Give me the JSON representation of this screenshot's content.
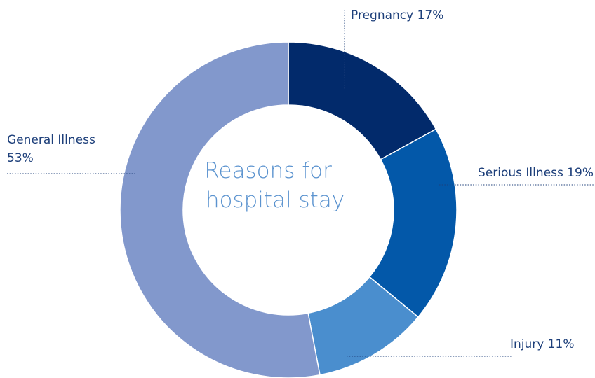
{
  "chart_data": {
    "type": "pie",
    "variant": "donut",
    "title": "Reasons for hospital stay",
    "title_lines": [
      "Reasons for",
      "hospital stay"
    ],
    "slices": [
      {
        "name": "Pregnancy",
        "value": 17,
        "label_lines": [
          "Pregnancy 17%"
        ],
        "color": "#022a6b"
      },
      {
        "name": "Serious Illness",
        "value": 19,
        "label_lines": [
          "Serious Illness 19%"
        ],
        "color": "#0358a9"
      },
      {
        "name": "Injury",
        "value": 11,
        "label_lines": [
          "Injury 11%"
        ],
        "color": "#4a8ece"
      },
      {
        "name": "General Illness",
        "value": 53,
        "label_lines": [
          "General Illness",
          "53%"
        ],
        "color": "#8298cc"
      }
    ],
    "start_position": "top",
    "direction": "clockwise"
  }
}
